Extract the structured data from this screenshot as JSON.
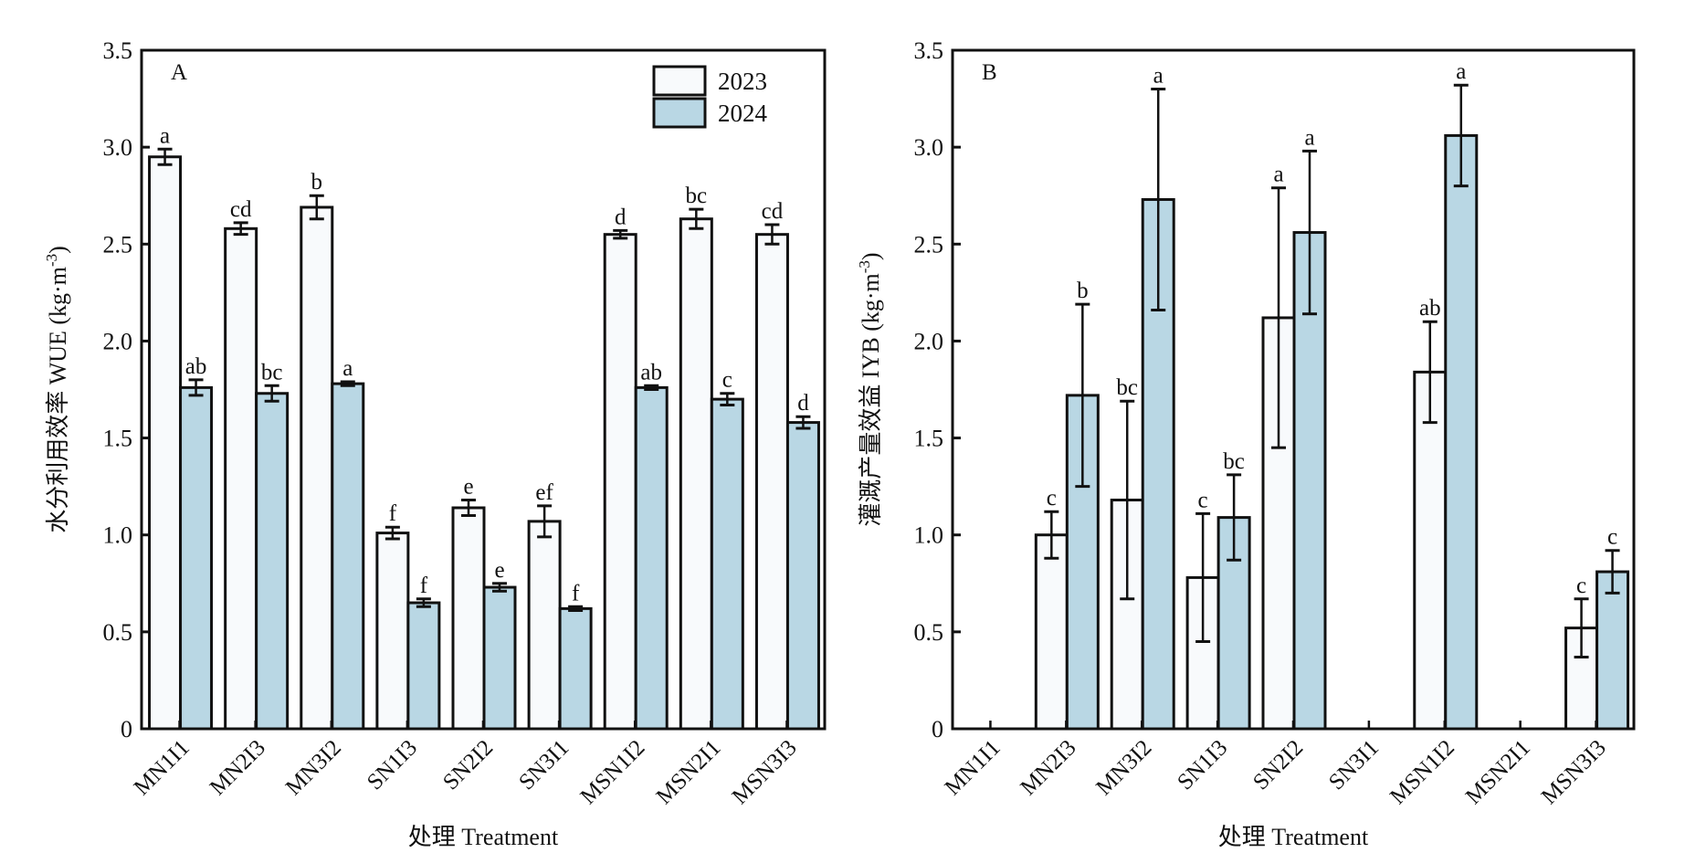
{
  "chart_data": [
    {
      "type": "bar",
      "panel": "A",
      "title": "",
      "xlabel": "处理 Treatment",
      "ylabel": "水分利用效率 WUE (kg·m⁻³)",
      "ylabel_main": "水分利用效率 WUE (kg·m",
      "ylabel_sup": "-3",
      "ylabel_close": ")",
      "ylim": [
        0,
        3.5
      ],
      "yticks": [
        0,
        0.5,
        1.0,
        1.5,
        2.0,
        2.5,
        3.0,
        3.5
      ],
      "ytick_labels": [
        "0",
        "0.5",
        "1.0",
        "1.5",
        "2.0",
        "2.5",
        "3.0",
        "3.5"
      ],
      "grid": false,
      "legend": {
        "placement": "top-right",
        "entries": [
          "2023",
          "2024"
        ]
      },
      "categories": [
        "MN1I1",
        "MN2I3",
        "MN3I2",
        "SN1I3",
        "SN2I2",
        "SN3I1",
        "MSN1I2",
        "MSN2I1",
        "MSN3I3"
      ],
      "series": [
        {
          "name": "2023",
          "color": "#f8fafc",
          "values": [
            2.95,
            2.58,
            2.69,
            1.01,
            1.14,
            1.07,
            2.55,
            2.63,
            2.55
          ],
          "errors": [
            0.04,
            0.03,
            0.06,
            0.03,
            0.04,
            0.08,
            0.02,
            0.05,
            0.05
          ],
          "letters": [
            "a",
            "cd",
            "b",
            "f",
            "e",
            "ef",
            "d",
            "bc",
            "cd"
          ]
        },
        {
          "name": "2024",
          "color": "#b9d7e4",
          "values": [
            1.76,
            1.73,
            1.78,
            0.65,
            0.73,
            0.62,
            1.76,
            1.7,
            1.58
          ],
          "errors": [
            0.04,
            0.04,
            0.01,
            0.02,
            0.02,
            0.01,
            0.01,
            0.03,
            0.03
          ],
          "letters": [
            "ab",
            "bc",
            "a",
            "f",
            "e",
            "f",
            "ab",
            "c",
            "d"
          ]
        }
      ]
    },
    {
      "type": "bar",
      "panel": "B",
      "title": "",
      "xlabel": "处理 Treatment",
      "ylabel": "灌溉产量效益 IYB (kg·m⁻³)",
      "ylabel_main": "灌溉产量效益 IYB (kg·m",
      "ylabel_sup": "-3",
      "ylabel_close": ")",
      "ylim": [
        0,
        3.5
      ],
      "yticks": [
        0,
        0.5,
        1.0,
        1.5,
        2.0,
        2.5,
        3.0,
        3.5
      ],
      "ytick_labels": [
        "0",
        "0.5",
        "1.0",
        "1.5",
        "2.0",
        "2.5",
        "3.0",
        "3.5"
      ],
      "grid": false,
      "legend": null,
      "categories": [
        "MN1I1",
        "MN2I3",
        "MN3I2",
        "SN1I3",
        "SN2I2",
        "SN3I1",
        "MSN1I2",
        "MSN2I1",
        "MSN3I3"
      ],
      "series": [
        {
          "name": "2023",
          "color": "#f8fafc",
          "values": [
            null,
            1.0,
            1.18,
            0.78,
            2.12,
            null,
            1.84,
            null,
            0.52
          ],
          "errors": [
            null,
            0.12,
            0.51,
            0.33,
            0.67,
            null,
            0.26,
            null,
            0.15
          ],
          "letters": [
            null,
            "c",
            "bc",
            "c",
            "a",
            null,
            "ab",
            null,
            "c"
          ]
        },
        {
          "name": "2024",
          "color": "#b9d7e4",
          "values": [
            null,
            1.72,
            2.73,
            1.09,
            2.56,
            null,
            3.06,
            null,
            0.81
          ],
          "errors": [
            null,
            0.47,
            0.57,
            0.22,
            0.42,
            null,
            0.26,
            null,
            0.11
          ],
          "letters": [
            null,
            "b",
            "a",
            "bc",
            "a",
            null,
            "a",
            null,
            "c"
          ]
        }
      ]
    }
  ]
}
